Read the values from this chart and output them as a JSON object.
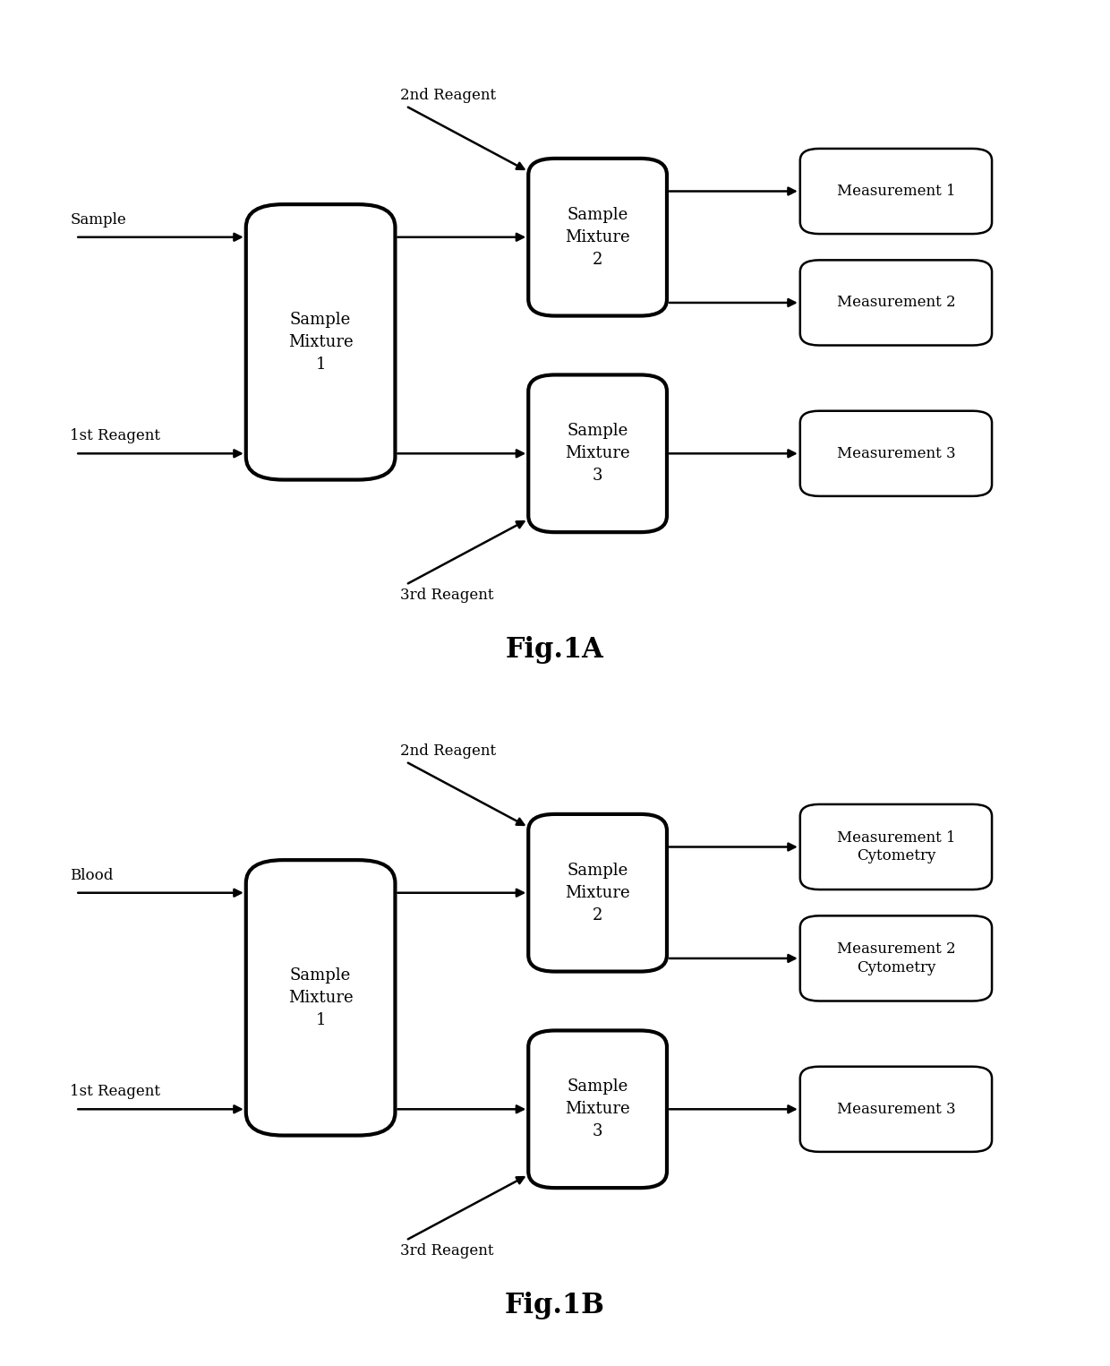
{
  "fig1a": {
    "title": "Fig.1A",
    "box1_label": "Sample\nMixture\n1",
    "box2_label": "Sample\nMixture\n2",
    "box3_label": "Sample\nMixture\n3",
    "reagent2_label": "2nd Reagent",
    "reagent3_label": "3rd Reagent",
    "meas1_label": "Measurement 1",
    "meas2_label": "Measurement 2",
    "meas3_label": "Measurement 3",
    "input1": "Sample",
    "input2": "1st Reagent"
  },
  "fig1b": {
    "title": "Fig.1B",
    "box1_label": "Sample\nMixture\n1",
    "box2_label": "Sample\nMixture\n2",
    "box3_label": "Sample\nMixture\n3",
    "reagent2_label": "2nd Reagent",
    "reagent3_label": "3rd Reagent",
    "meas1_label": "Measurement 1\nCytometry",
    "meas2_label": "Measurement 2\nCytometry",
    "meas3_label": "Measurement 3",
    "input1": "Blood",
    "input2": "1st Reagent"
  },
  "box_facecolor": "#ffffff",
  "box_edgecolor": "#000000",
  "text_color": "#000000",
  "background_color": "#ffffff",
  "title_fontsize": 22,
  "label_fontsize": 14
}
